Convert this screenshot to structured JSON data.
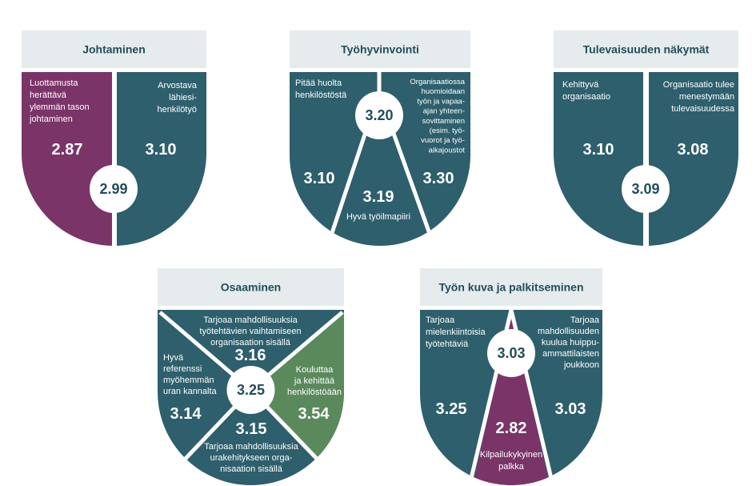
{
  "colors": {
    "teal": "#2e5f6c",
    "purple": "#7a3468",
    "green": "#5a8a5c",
    "header_bg": "#e6ebed",
    "header_text": "#1f4e5a"
  },
  "panels": {
    "johtaminen": {
      "title": "Johtaminen",
      "center_value": "2.99",
      "left": {
        "label": [
          "Luottamusta",
          "herättävä",
          "ylemmän tason",
          "johtaminen"
        ],
        "value": "2.87"
      },
      "right": {
        "label": [
          "Arvostava",
          "lähiesi-",
          "henkilötyö"
        ],
        "value": "3.10"
      }
    },
    "tyohyvinvointi": {
      "title": "Työhyvinvointi",
      "center_value": "3.20",
      "left": {
        "label": [
          "Pitää huolta",
          "henkilöstöstä"
        ],
        "value": "3.10"
      },
      "bottom": {
        "label": [
          "Hyvä työilmapiiri"
        ],
        "value": "3.19"
      },
      "right": {
        "label": [
          "Organisaatiossa",
          "huomioidaan",
          "työn ja vapaa-",
          "ajan yhteen-",
          "sovittaminen",
          "(esim. työ-",
          "vuorot ja työ-",
          "aikajoustot"
        ],
        "value": "3.30"
      }
    },
    "tulevaisuus": {
      "title": "Tulevaisuuden näkymät",
      "center_value": "3.09",
      "left": {
        "label": [
          "Kehittyvä",
          "organisaatio"
        ],
        "value": "3.10"
      },
      "right": {
        "label": [
          "Organisaatio tulee",
          "menestymään",
          "tulevaisuudessa"
        ],
        "value": "3.08"
      }
    },
    "osaaminen": {
      "title": "Osaaminen",
      "center_value": "3.25",
      "top": {
        "label": [
          "Tarjoaa mahdollisuuksia",
          "työtehtävien vaihtamiseen",
          "organisaation sisällä"
        ],
        "value": "3.16"
      },
      "left": {
        "label": [
          "Hyvä",
          "referenssi",
          "myöhemmän",
          "uran kannalta"
        ],
        "value": "3.14"
      },
      "right": {
        "label": [
          "Kouluttaa",
          "ja kehittää",
          "henkilöstöään"
        ],
        "value": "3.54"
      },
      "bottom": {
        "label": [
          "Tarjoaa mahdollisuuksia",
          "urakehitykseen orga-",
          "nisaation sisällä"
        ],
        "value": "3.15"
      }
    },
    "tyon_kuva": {
      "title": "Työn kuva ja palkitseminen",
      "center_value": "3.03",
      "left": {
        "label": [
          "Tarjoaa",
          "mielenkiintoisia",
          "työtehtäviä"
        ],
        "value": "3.25"
      },
      "bottom": {
        "label": [
          "Kilpailukykyinen",
          "palkka"
        ],
        "value": "2.82"
      },
      "right": {
        "label": [
          "Tarjoaa",
          "mahdollisuuden",
          "kuulua huippu-",
          "ammattilaisten",
          "joukkoon"
        ],
        "value": "3.03"
      }
    }
  }
}
